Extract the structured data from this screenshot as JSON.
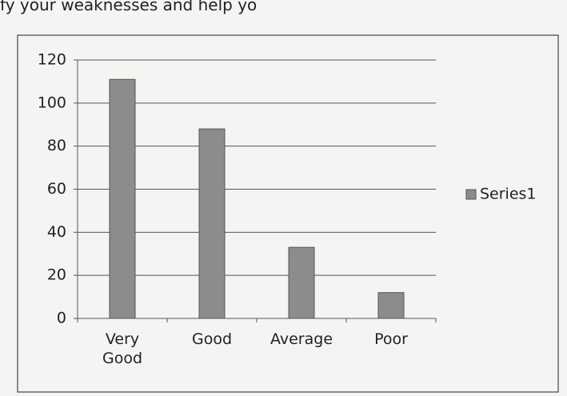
{
  "header_text": "fy your weaknesses and help yo",
  "chart_data": {
    "type": "bar",
    "categories": [
      "Very Good",
      "Good",
      "Average",
      "Poor"
    ],
    "series": [
      {
        "name": "Series1",
        "color": "#8c8c8c",
        "values": [
          111,
          88,
          33,
          12
        ]
      }
    ],
    "ylim": [
      0,
      120
    ],
    "yticks": [
      0,
      20,
      40,
      60,
      80,
      100,
      120
    ],
    "grid": true,
    "legend": "right"
  }
}
